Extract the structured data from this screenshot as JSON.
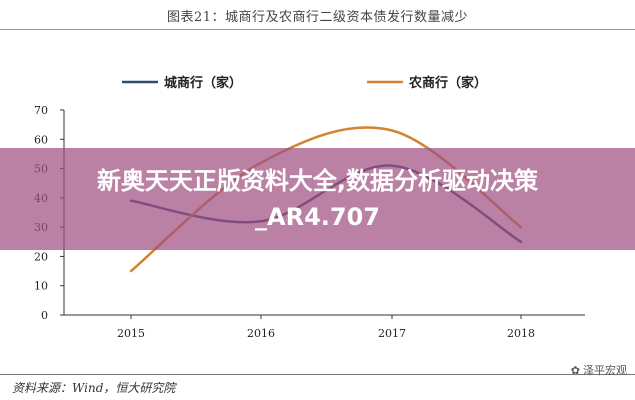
{
  "caption": "图表21：城商行及农商行二级资本债发行数量减少",
  "source": "资料来源：Wind，恒大研究院",
  "watermark": "泽平宏观",
  "banner": "新奥天天正版资料大全,数据分析驱动决策_AR4.707",
  "chart_data": {
    "type": "line",
    "x": [
      "2015",
      "2016",
      "2017",
      "2018"
    ],
    "ylim": [
      0,
      70
    ],
    "yticks": [
      "0",
      "10",
      "20",
      "30",
      "40",
      "50",
      "60",
      "70"
    ],
    "grid": false,
    "legend_position": "top",
    "series": [
      {
        "name": "城商行（家）",
        "color": "#2e4a72",
        "values": [
          39,
          32,
          51,
          25
        ]
      },
      {
        "name": "农商行（家）",
        "color": "#d4832f",
        "values": [
          15,
          52,
          63,
          30
        ]
      }
    ]
  }
}
